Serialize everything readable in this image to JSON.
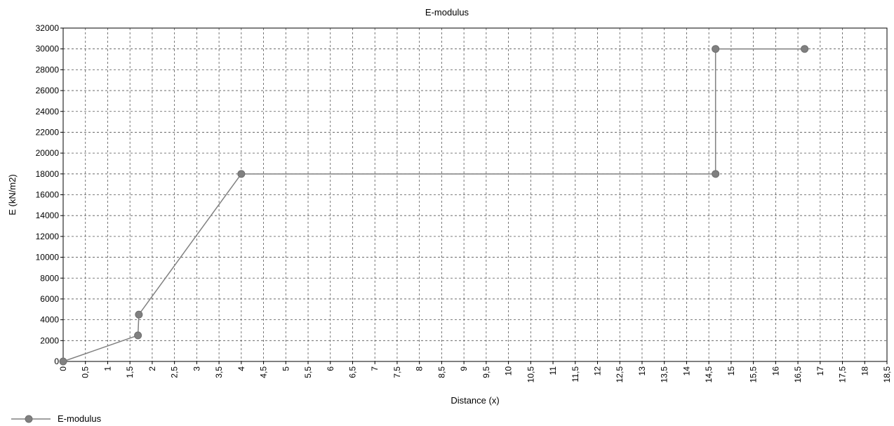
{
  "chart_data": {
    "type": "line",
    "title": "E-modulus",
    "xlabel": "Distance (x)",
    "ylabel": "E (kN/m2)",
    "xlim": [
      0,
      18.5
    ],
    "ylim": [
      0,
      32000
    ],
    "x_ticks": [
      0,
      0.5,
      1,
      1.5,
      2,
      2.5,
      3,
      3.5,
      4,
      4.5,
      5,
      5.5,
      6,
      6.5,
      7,
      7.5,
      8,
      8.5,
      9,
      9.5,
      10,
      10.5,
      11,
      11.5,
      12,
      12.5,
      13,
      13.5,
      14,
      14.5,
      15,
      15.5,
      16,
      16.5,
      17,
      17.5,
      18,
      18.5
    ],
    "x_tick_labels": [
      "0",
      "0,5",
      "1",
      "1,5",
      "2",
      "2,5",
      "3",
      "3,5",
      "4",
      "4,5",
      "5",
      "5,5",
      "6",
      "6,5",
      "7",
      "7,5",
      "8",
      "8,5",
      "9",
      "9,5",
      "10",
      "10,5",
      "11",
      "11,5",
      "12",
      "12,5",
      "13",
      "13,5",
      "14",
      "14,5",
      "15",
      "15,5",
      "16",
      "16,5",
      "17",
      "17,5",
      "18",
      "18,5"
    ],
    "y_ticks": [
      0,
      2000,
      4000,
      6000,
      8000,
      10000,
      12000,
      14000,
      16000,
      18000,
      20000,
      22000,
      24000,
      26000,
      28000,
      30000,
      32000
    ],
    "y_tick_labels": [
      "0",
      "2000",
      "4000",
      "6000",
      "8000",
      "10000",
      "12000",
      "14000",
      "16000",
      "18000",
      "20000",
      "22000",
      "24000",
      "26000",
      "28000",
      "30000",
      "32000"
    ],
    "grid": true,
    "legend_position": "bottom-left",
    "series": [
      {
        "name": "E-modulus",
        "color": "#808080",
        "x": [
          0,
          1.68,
          1.7,
          4,
          14.65,
          14.65,
          16.65
        ],
        "y": [
          0,
          2500,
          4500,
          18000,
          18000,
          30000,
          30000
        ]
      }
    ]
  }
}
